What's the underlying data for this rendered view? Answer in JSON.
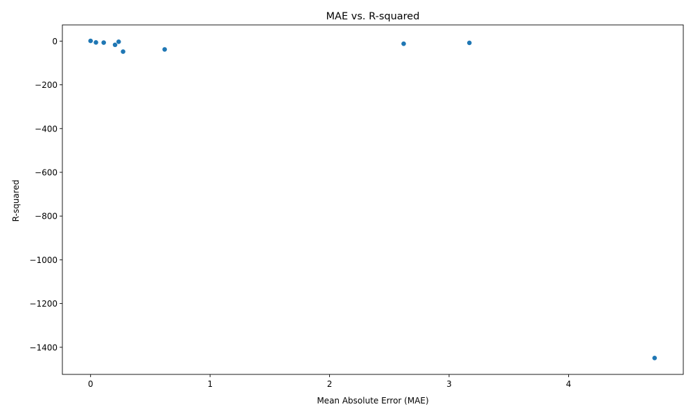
{
  "chart_data": {
    "type": "scatter",
    "title": "MAE vs. R-squared",
    "xlabel": "Mean Absolute Error (MAE)",
    "ylabel": "R-squared",
    "xlim": [
      -0.236,
      4.96
    ],
    "ylim": [
      -1524,
      74
    ],
    "xticks": [
      0,
      1,
      2,
      3,
      4
    ],
    "xtick_labels": [
      "0",
      "1",
      "2",
      "3",
      "4"
    ],
    "yticks": [
      0,
      -200,
      -400,
      -600,
      -800,
      -1000,
      -1200,
      -1400
    ],
    "ytick_labels": [
      "0",
      "−200",
      "−400",
      "−600",
      "−800",
      "−1000",
      "−1200",
      "−1400"
    ],
    "grid": false,
    "marker_color": "#1f77b4",
    "points": [
      {
        "x": 0.0,
        "y": 1
      },
      {
        "x": 0.045,
        "y": -6
      },
      {
        "x": 0.11,
        "y": -7
      },
      {
        "x": 0.205,
        "y": -17
      },
      {
        "x": 0.235,
        "y": -3
      },
      {
        "x": 0.272,
        "y": -48
      },
      {
        "x": 0.62,
        "y": -38
      },
      {
        "x": 2.62,
        "y": -12
      },
      {
        "x": 3.17,
        "y": -8
      },
      {
        "x": 4.72,
        "y": -1449
      }
    ]
  }
}
